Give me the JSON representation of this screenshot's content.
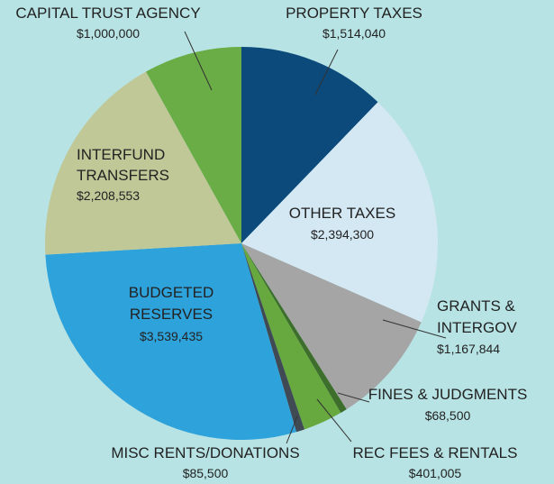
{
  "chart_data": {
    "type": "pie",
    "categories": [
      "PROPERTY TAXES",
      "OTHER TAXES",
      "GRANTS & INTERGOV",
      "FINES & JUDGMENTS",
      "REC FEES & RENTALS",
      "MISC RENTS/DONATIONS",
      "BUDGETED RESERVES",
      "INTERFUND TRANSFERS",
      "CAPITAL TRUST AGENCY"
    ],
    "values": [
      1514040,
      2394300,
      1167844,
      68500,
      401005,
      85500,
      3539435,
      2208553,
      1000000
    ],
    "value_labels": [
      "$1,514,040",
      "$2,394,300",
      "$1,167,844",
      "$68,500",
      "$401,005",
      "$85,500",
      "$3,539,435",
      "$2,208,553",
      "$1,000,000"
    ],
    "colors": [
      "#0b4a7b",
      "#d3e8f3",
      "#a5a5a5",
      "#3d6e2c",
      "#67a83f",
      "#3f4a55",
      "#2ea2db",
      "#c0c898",
      "#6aac46"
    ]
  }
}
